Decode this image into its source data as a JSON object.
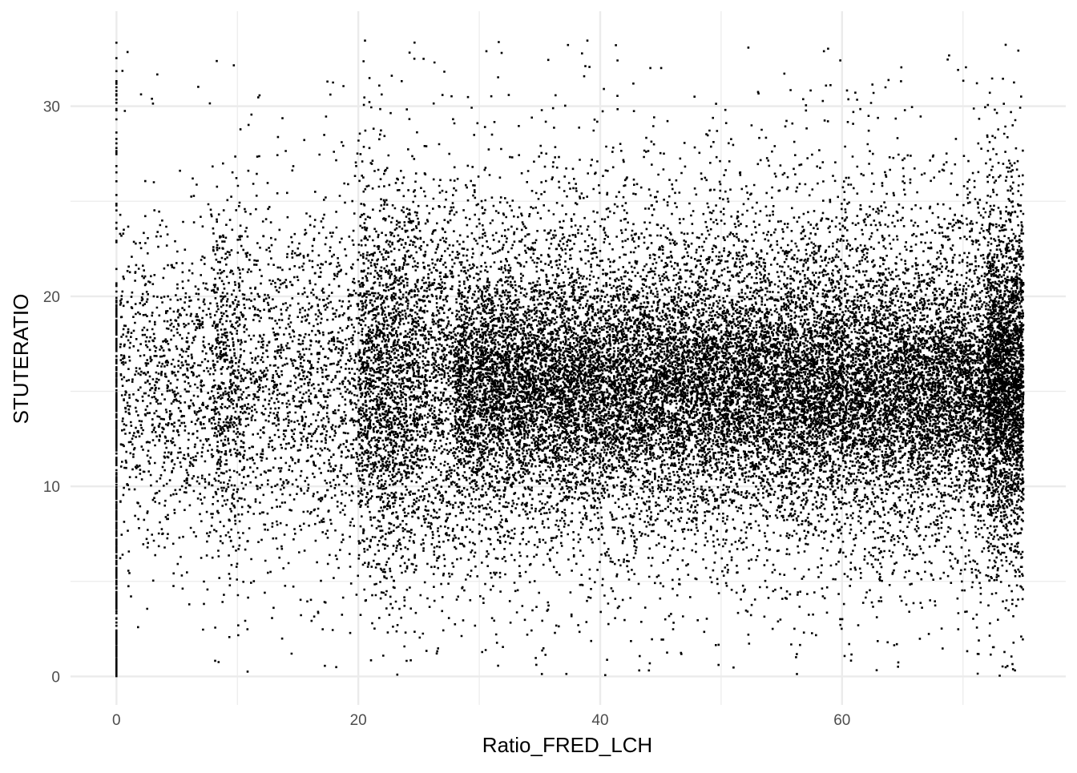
{
  "chart_data": {
    "type": "scatter",
    "xlabel": "Ratio_FRED_LCH",
    "ylabel": "STUTERATIO",
    "xlim": [
      -3.8,
      78.5
    ],
    "ylim": [
      -1.5,
      35
    ],
    "x_ticks": [
      0,
      20,
      40,
      60
    ],
    "x_tick_labels": [
      "0",
      "20",
      "40",
      "60"
    ],
    "y_ticks": [
      0,
      10,
      20,
      30
    ],
    "y_tick_labels": [
      "0",
      "10",
      "20",
      "30"
    ],
    "x_minor_ticks": [
      10,
      30,
      50,
      70
    ],
    "y_minor_ticks": [
      5,
      15,
      25
    ],
    "grid": true,
    "theme": "minimal",
    "point_color": "#000000",
    "grid_color": "#ebebeb",
    "x_range_of_points": [
      0,
      75
    ],
    "y_range_of_points": [
      0,
      33.5
    ],
    "approx_point_count": 21000,
    "point_density_center": {
      "x": [
        30,
        75
      ],
      "y": 15.5
    },
    "vertical_column_at_x0": {
      "x": 0,
      "y_range": [
        0,
        33.5
      ]
    }
  }
}
